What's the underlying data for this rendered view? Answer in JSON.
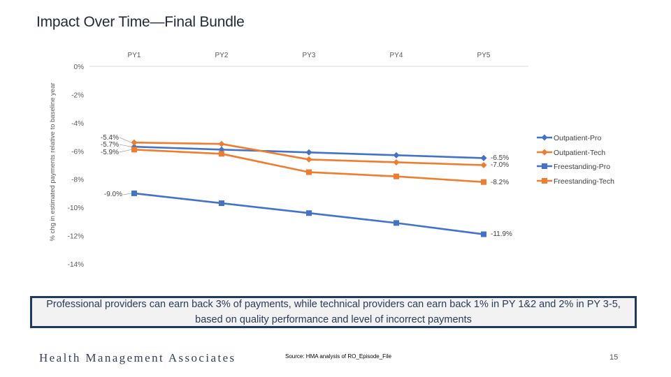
{
  "slide": {
    "title": "Impact Over Time—Final Bundle",
    "callout": "Professional providers can earn back 3% of payments, while technical providers can earn back 1% in PY 1&2 and 2% in PY 3-5, based on quality performance and level of incorrect payments",
    "logo_text": "Health Management Associates",
    "source": "Source: HMA analysis of RO_Episode_File",
    "page_number": "15"
  },
  "chart_data": {
    "type": "line",
    "title": "",
    "xlabel": "",
    "ylabel": "% chg in estimated payments relative to baseline year",
    "categories": [
      "PY1",
      "PY2",
      "PY3",
      "PY4",
      "PY5"
    ],
    "ylim": [
      -14,
      0
    ],
    "yticks": [
      0,
      -2,
      -4,
      -6,
      -8,
      -10,
      -12,
      -14
    ],
    "ytick_labels": [
      "0%",
      "-2%",
      "-4%",
      "-6%",
      "-8%",
      "-10%",
      "-12%",
      "-14%"
    ],
    "legend_position": "right",
    "series": [
      {
        "name": "Outpatient-Pro",
        "color": "#4472c4",
        "marker": "diamond",
        "values": [
          -5.7,
          -5.9,
          -6.1,
          -6.3,
          -6.5
        ]
      },
      {
        "name": "Outpatient-Tech",
        "color": "#ed7d31",
        "marker": "diamond",
        "values": [
          -5.4,
          -5.5,
          -6.6,
          -6.8,
          -7.0
        ]
      },
      {
        "name": "Freestanding-Pro",
        "color": "#4472c4",
        "marker": "square",
        "values": [
          -9.0,
          -9.7,
          -10.4,
          -11.1,
          -11.9
        ]
      },
      {
        "name": "Freestanding-Tech",
        "color": "#ed7d31",
        "marker": "square",
        "values": [
          -5.9,
          -6.2,
          -7.5,
          -7.8,
          -8.2
        ]
      }
    ],
    "data_labels": [
      {
        "series": 1,
        "point": 0,
        "text": "-5.4%"
      },
      {
        "series": 0,
        "point": 0,
        "text": "-5.7%"
      },
      {
        "series": 3,
        "point": 0,
        "text": "-5.9%"
      },
      {
        "series": 2,
        "point": 0,
        "text": "-9.0%"
      },
      {
        "series": 0,
        "point": 4,
        "text": "-6.5%"
      },
      {
        "series": 1,
        "point": 4,
        "text": "-7.0%"
      },
      {
        "series": 3,
        "point": 4,
        "text": "-8.2%"
      },
      {
        "series": 2,
        "point": 4,
        "text": "-11.9%"
      }
    ]
  }
}
